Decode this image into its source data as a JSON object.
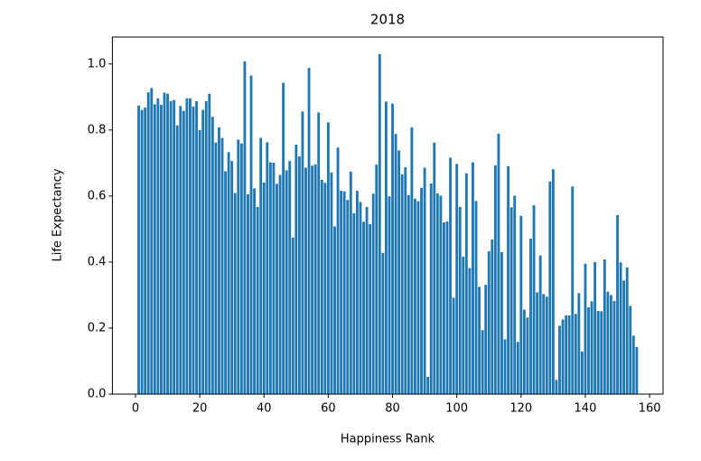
{
  "chart_data": {
    "type": "bar",
    "title": "2018",
    "xlabel": "Happiness Rank",
    "ylabel": "Life Expectancy",
    "color": "#1f77b4",
    "x": [
      1,
      2,
      3,
      4,
      5,
      6,
      7,
      8,
      9,
      10,
      11,
      12,
      13,
      14,
      15,
      16,
      17,
      18,
      19,
      20,
      21,
      22,
      23,
      24,
      25,
      26,
      27,
      28,
      29,
      30,
      31,
      32,
      33,
      34,
      35,
      36,
      37,
      38,
      39,
      40,
      41,
      42,
      43,
      44,
      45,
      46,
      47,
      48,
      49,
      50,
      51,
      52,
      53,
      54,
      55,
      56,
      57,
      58,
      59,
      60,
      61,
      62,
      63,
      64,
      65,
      66,
      67,
      68,
      69,
      70,
      71,
      72,
      73,
      74,
      75,
      76,
      77,
      78,
      79,
      80,
      81,
      82,
      83,
      84,
      85,
      86,
      87,
      88,
      89,
      90,
      91,
      92,
      93,
      94,
      95,
      96,
      97,
      98,
      99,
      100,
      101,
      102,
      103,
      104,
      105,
      106,
      107,
      108,
      109,
      110,
      111,
      112,
      113,
      114,
      115,
      116,
      117,
      118,
      119,
      120,
      121,
      122,
      123,
      124,
      125,
      126,
      127,
      128,
      129,
      130,
      131,
      132,
      133,
      134,
      135,
      136,
      137,
      138,
      139,
      140,
      141,
      142,
      143,
      144,
      145,
      146,
      147,
      148,
      149,
      150,
      151,
      152,
      153,
      154,
      155,
      156
    ],
    "values": [
      0.874,
      0.861,
      0.868,
      0.914,
      0.927,
      0.878,
      0.896,
      0.876,
      0.913,
      0.91,
      0.888,
      0.891,
      0.814,
      0.873,
      0.858,
      0.896,
      0.896,
      0.871,
      0.887,
      0.8,
      0.861,
      0.887,
      0.91,
      0.84,
      0.762,
      0.808,
      0.776,
      0.675,
      0.733,
      0.706,
      0.609,
      0.771,
      0.759,
      1.008,
      0.605,
      0.965,
      0.623,
      0.567,
      0.776,
      0.641,
      0.763,
      0.702,
      0.701,
      0.637,
      0.664,
      0.943,
      0.678,
      0.706,
      0.474,
      0.756,
      0.72,
      0.856,
      0.686,
      0.988,
      0.692,
      0.696,
      0.853,
      0.649,
      0.64,
      0.823,
      0.671,
      0.508,
      0.747,
      0.616,
      0.614,
      0.588,
      0.674,
      0.548,
      0.616,
      0.582,
      0.522,
      0.567,
      0.515,
      0.607,
      0.695,
      1.03,
      0.428,
      0.886,
      0.599,
      0.88,
      0.788,
      0.738,
      0.666,
      0.687,
      0.603,
      0.808,
      0.592,
      0.584,
      0.625,
      0.686,
      0.052,
      0.638,
      0.762,
      0.608,
      0.601,
      0.52,
      0.523,
      0.716,
      0.292,
      0.697,
      0.567,
      0.416,
      0.669,
      0.382,
      0.702,
      0.585,
      0.325,
      0.194,
      0.331,
      0.433,
      0.468,
      0.693,
      0.789,
      0.43,
      0.166,
      0.69,
      0.566,
      0.601,
      0.158,
      0.54,
      0.256,
      0.232,
      0.471,
      0.572,
      0.308,
      0.42,
      0.303,
      0.295,
      0.644,
      0.681,
      0.043,
      0.207,
      0.226,
      0.238,
      0.238,
      0.629,
      0.243,
      0.306,
      0.129,
      0.395,
      0.263,
      0.281,
      0.4,
      0.252,
      0.251,
      0.408,
      0.31,
      0.3,
      0.282,
      0.542,
      0.399,
      0.344,
      0.384,
      0.267,
      0.177,
      0.143
    ],
    "xlim": [
      -7.19,
      164.19
    ],
    "xticks": [
      0,
      20,
      40,
      60,
      80,
      100,
      120,
      140,
      160
    ],
    "ylim": [
      0,
      1.0815
    ],
    "yticks": [
      {
        "value": 0,
        "label": "0.0"
      },
      {
        "value": 0.2,
        "label": "0.2"
      },
      {
        "value": 0.4,
        "label": "0.4"
      },
      {
        "value": 0.6,
        "label": "0.6"
      },
      {
        "value": 0.8,
        "label": "0.8"
      },
      {
        "value": 1,
        "label": "1.0"
      }
    ]
  }
}
